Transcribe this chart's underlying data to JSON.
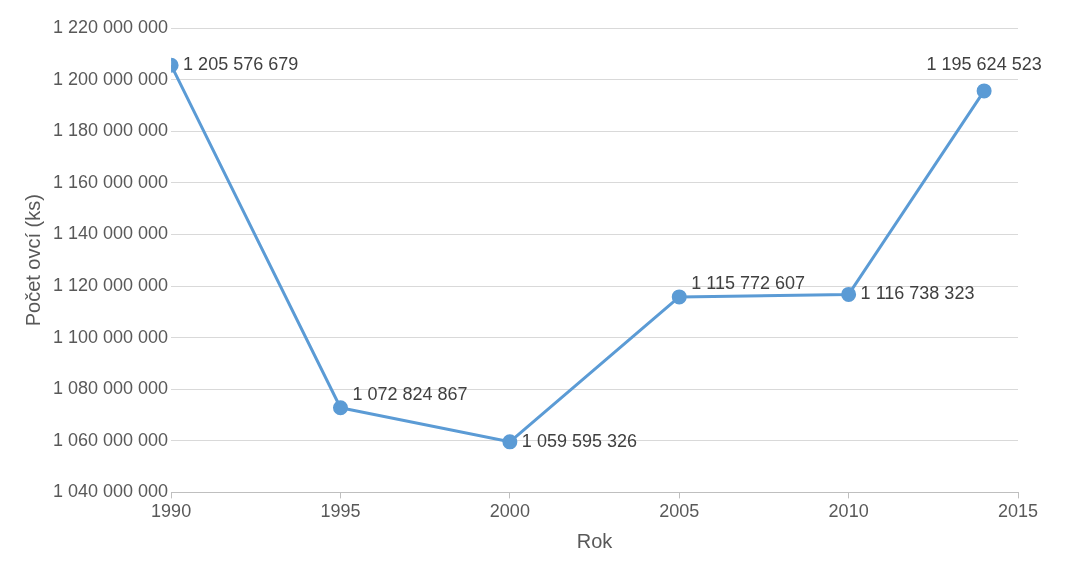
{
  "chart_data": {
    "type": "line",
    "xlabel": "Rok",
    "ylabel": "Počet ovcí (ks)",
    "x": [
      1990,
      1995,
      2000,
      2005,
      2010,
      2014
    ],
    "series": [
      {
        "color": "#5b9bd5",
        "values": [
          1205576679,
          1072824867,
          1059595326,
          1115772607,
          1116738323,
          1195624523
        ],
        "value_labels": [
          "1 205 576 679",
          "1 072 824 867",
          "1 059 595 326",
          "1 115 772 607",
          "1 116 738 323",
          "1 195 624 523"
        ]
      }
    ],
    "xlim": [
      1990,
      2015
    ],
    "xticks": [
      1990,
      1995,
      2000,
      2005,
      2010,
      2015
    ],
    "ylim": [
      1040000000,
      1220000000
    ],
    "yticks": [
      {
        "value": 1040000000,
        "label": "1 040 000 000"
      },
      {
        "value": 1060000000,
        "label": "1 060 000 000"
      },
      {
        "value": 1080000000,
        "label": "1 080 000 000"
      },
      {
        "value": 1100000000,
        "label": "1 100 000 000"
      },
      {
        "value": 1120000000,
        "label": "1 120 000 000"
      },
      {
        "value": 1140000000,
        "label": "1 140 000 000"
      },
      {
        "value": 1160000000,
        "label": "1 160 000 000"
      },
      {
        "value": 1180000000,
        "label": "1 180 000 000"
      },
      {
        "value": 1200000000,
        "label": "1 200 000 000"
      },
      {
        "value": 1220000000,
        "label": "1 220 000 000"
      }
    ],
    "grid": "y",
    "legend": false,
    "marker": "circle",
    "line_style": "solid"
  }
}
